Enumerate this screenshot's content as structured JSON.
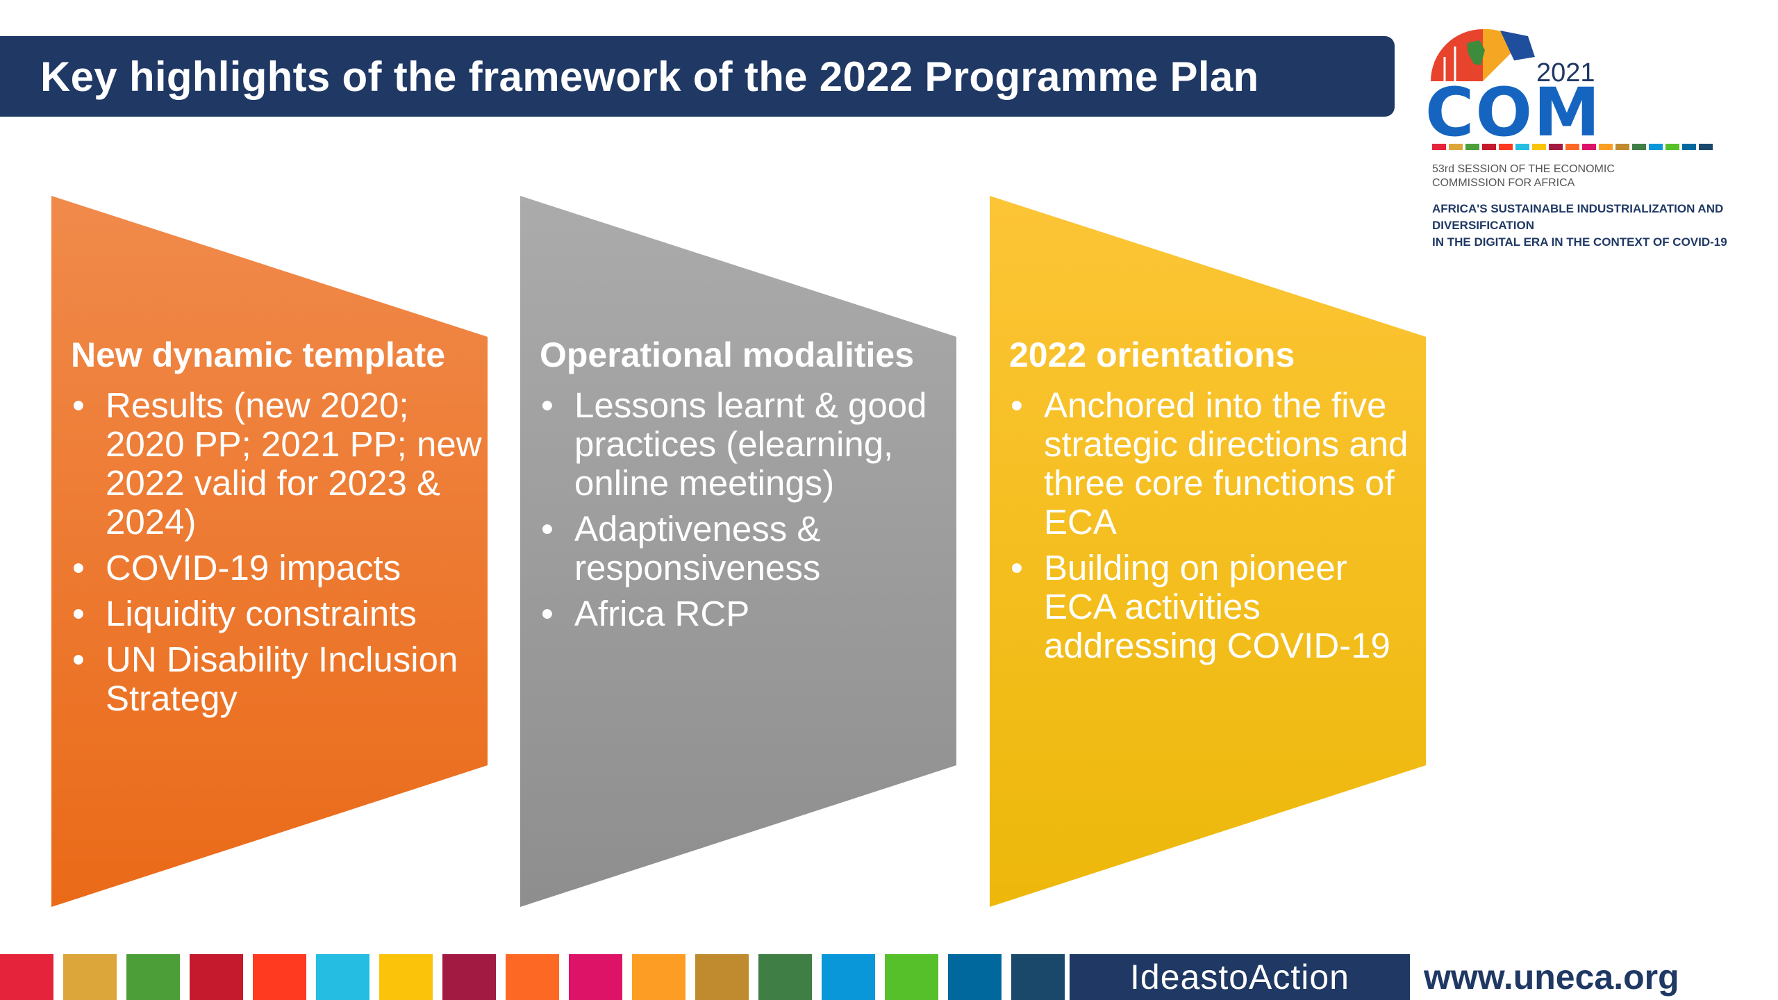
{
  "title": "Key highlights of the framework of the 2022 Programme Plan",
  "logo": {
    "year": "2021",
    "name": "COM",
    "session_line1": "53rd SESSION OF THE ECONOMIC",
    "session_line2": "COMMISSION FOR AFRICA",
    "theme_line1": "AFRICA'S SUSTAINABLE INDUSTRIALIZATION AND DIVERSIFICATION",
    "theme_line2": "IN THE DIGITAL ERA IN THE CONTEXT OF COVID-19"
  },
  "panels": [
    {
      "heading": "New dynamic template",
      "color_top": "#f08a4b",
      "color_bottom": "#ea6a18",
      "bullets": [
        "Results (new 2020; 2020 PP; 2021 PP; new 2022 valid for 2023 & 2024)",
        "COVID-19 impacts",
        "Liquidity constraints",
        "UN Disability Inclusion Strategy"
      ]
    },
    {
      "heading": "Operational modalities",
      "color_top": "#ababab",
      "color_bottom": "#8e8e8e",
      "bullets": [
        "Lessons learnt & good practices (elearning, online meetings)",
        "Adaptiveness & responsiveness",
        "Africa RCP"
      ]
    },
    {
      "heading": "2022 orientations",
      "color_top": "#fcc536",
      "color_bottom": "#edb80a",
      "bullets": [
        "Anchored into the five strategic directions and three core functions of ECA",
        "Building on pioneer ECA activities addressing COVID-19"
      ]
    }
  ],
  "footer": {
    "tagline": "IdeastoAction",
    "url": "www.uneca.org",
    "sdg_colors": [
      "#e5243b",
      "#dda63a",
      "#4c9f38",
      "#c5192d",
      "#ff3a21",
      "#26bde2",
      "#fcc30b",
      "#a21942",
      "#fd6925",
      "#dd1367",
      "#fd9d24",
      "#bf8b2e",
      "#3f7e44",
      "#0a97d9",
      "#56c02b",
      "#00689d",
      "#19486a"
    ]
  }
}
